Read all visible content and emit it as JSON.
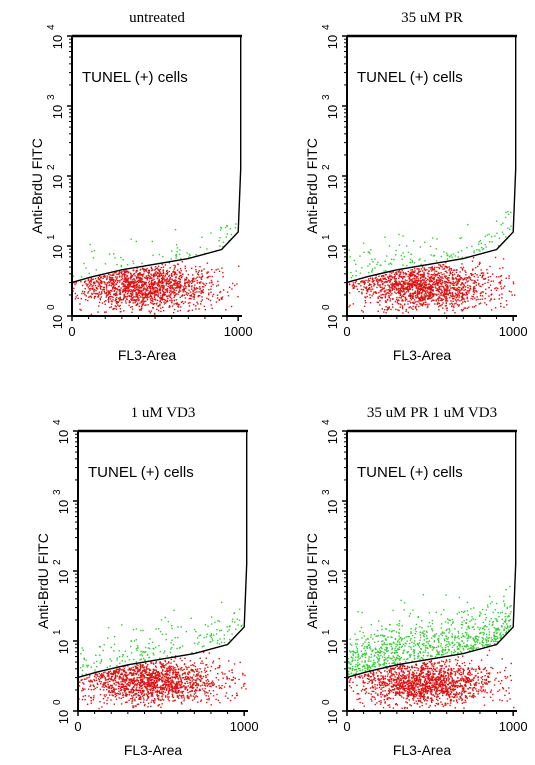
{
  "chart_data": [
    {
      "type": "scatter",
      "title": "untreated",
      "xlabel": "FL3-Area",
      "ylabel": "Anti-BrdU FITC",
      "x_ticks": [
        "0",
        "1000"
      ],
      "y_ticks": [
        {
          "base": "10",
          "exp": "0"
        },
        {
          "base": "10",
          "exp": "1"
        },
        {
          "base": "10",
          "exp": "2"
        },
        {
          "base": "10",
          "exp": "3"
        },
        {
          "base": "10",
          "exp": "4"
        }
      ],
      "xlim": [
        0,
        1023
      ],
      "ylim_log10": [
        0,
        4
      ],
      "y_scale": "log",
      "gate_label": "TUNEL (+) cells",
      "gate_boundary": [
        [
          0,
          0.48
        ],
        [
          120,
          0.56
        ],
        [
          300,
          0.66
        ],
        [
          500,
          0.74
        ],
        [
          700,
          0.82
        ],
        [
          900,
          0.95
        ],
        [
          1000,
          1.2
        ],
        [
          1015,
          2.1
        ]
      ],
      "populations": [
        {
          "name": "TUNEL-negative",
          "color": "#dd1111",
          "x_center": 450,
          "x_spread": 210,
          "y_center_log": 0.42,
          "y_spread_log": 0.16
        },
        {
          "name": "TUNEL-positive",
          "color": "#33cc33",
          "x_center": 500,
          "x_spread": 220,
          "y_center_log": 0.95,
          "y_spread_log": 0.22
        }
      ],
      "negative_count": 1500,
      "positive_count": 70
    },
    {
      "type": "scatter",
      "title": "35 uM PR",
      "xlabel": "FL3-Area",
      "ylabel": "Anti-BrdU FITC",
      "x_ticks": [
        "0",
        "1000"
      ],
      "y_ticks": [
        {
          "base": "10",
          "exp": "0"
        },
        {
          "base": "10",
          "exp": "1"
        },
        {
          "base": "10",
          "exp": "2"
        },
        {
          "base": "10",
          "exp": "3"
        },
        {
          "base": "10",
          "exp": "4"
        }
      ],
      "xlim": [
        0,
        1023
      ],
      "ylim_log10": [
        0,
        4
      ],
      "y_scale": "log",
      "gate_label": "TUNEL (+) cells",
      "gate_boundary": [
        [
          0,
          0.48
        ],
        [
          120,
          0.56
        ],
        [
          300,
          0.66
        ],
        [
          500,
          0.74
        ],
        [
          700,
          0.82
        ],
        [
          900,
          0.95
        ],
        [
          1000,
          1.2
        ],
        [
          1015,
          2.1
        ]
      ],
      "populations": [
        {
          "name": "TUNEL-negative",
          "color": "#dd1111",
          "x_center": 470,
          "x_spread": 210,
          "y_center_log": 0.42,
          "y_spread_log": 0.16
        },
        {
          "name": "TUNEL-positive",
          "color": "#33cc33",
          "x_center": 520,
          "x_spread": 220,
          "y_center_log": 0.95,
          "y_spread_log": 0.22
        }
      ],
      "negative_count": 1500,
      "positive_count": 140
    },
    {
      "type": "scatter",
      "title": "1 uM VD3",
      "xlabel": "FL3-Area",
      "ylabel": "Anti-BrdU FITC",
      "x_ticks": [
        "0",
        "1000"
      ],
      "y_ticks": [
        {
          "base": "10",
          "exp": "0"
        },
        {
          "base": "10",
          "exp": "1"
        },
        {
          "base": "10",
          "exp": "2"
        },
        {
          "base": "10",
          "exp": "3"
        },
        {
          "base": "10",
          "exp": "4"
        }
      ],
      "xlim": [
        0,
        1023
      ],
      "ylim_log10": [
        0,
        4
      ],
      "y_scale": "log",
      "gate_label": "TUNEL (+) cells",
      "gate_boundary": [
        [
          0,
          0.48
        ],
        [
          120,
          0.56
        ],
        [
          300,
          0.66
        ],
        [
          500,
          0.74
        ],
        [
          700,
          0.82
        ],
        [
          900,
          0.95
        ],
        [
          1000,
          1.2
        ],
        [
          1015,
          2.1
        ]
      ],
      "populations": [
        {
          "name": "TUNEL-negative",
          "color": "#dd1111",
          "x_center": 440,
          "x_spread": 210,
          "y_center_log": 0.42,
          "y_spread_log": 0.16
        },
        {
          "name": "TUNEL-positive",
          "color": "#33cc33",
          "x_center": 480,
          "x_spread": 230,
          "y_center_log": 1.0,
          "y_spread_log": 0.24
        }
      ],
      "negative_count": 1500,
      "positive_count": 200
    },
    {
      "type": "scatter",
      "title": "35 uM PR 1 uM VD3",
      "xlabel": "FL3-Area",
      "ylabel": "Anti-BrdU FITC",
      "x_ticks": [
        "0",
        "1000"
      ],
      "y_ticks": [
        {
          "base": "10",
          "exp": "0"
        },
        {
          "base": "10",
          "exp": "1"
        },
        {
          "base": "10",
          "exp": "2"
        },
        {
          "base": "10",
          "exp": "3"
        },
        {
          "base": "10",
          "exp": "4"
        }
      ],
      "xlim": [
        0,
        1023
      ],
      "ylim_log10": [
        0,
        4
      ],
      "y_scale": "log",
      "gate_label": "TUNEL (+) cells",
      "gate_boundary": [
        [
          0,
          0.48
        ],
        [
          120,
          0.56
        ],
        [
          300,
          0.66
        ],
        [
          500,
          0.74
        ],
        [
          700,
          0.82
        ],
        [
          900,
          0.95
        ],
        [
          1000,
          1.2
        ],
        [
          1015,
          2.1
        ]
      ],
      "populations": [
        {
          "name": "TUNEL-negative",
          "color": "#dd1111",
          "x_center": 460,
          "x_spread": 210,
          "y_center_log": 0.4,
          "y_spread_log": 0.16
        },
        {
          "name": "TUNEL-positive",
          "color": "#33cc33",
          "x_center": 420,
          "x_spread": 260,
          "y_center_log": 1.05,
          "y_spread_log": 0.28
        }
      ],
      "negative_count": 1500,
      "positive_count": 900
    }
  ]
}
